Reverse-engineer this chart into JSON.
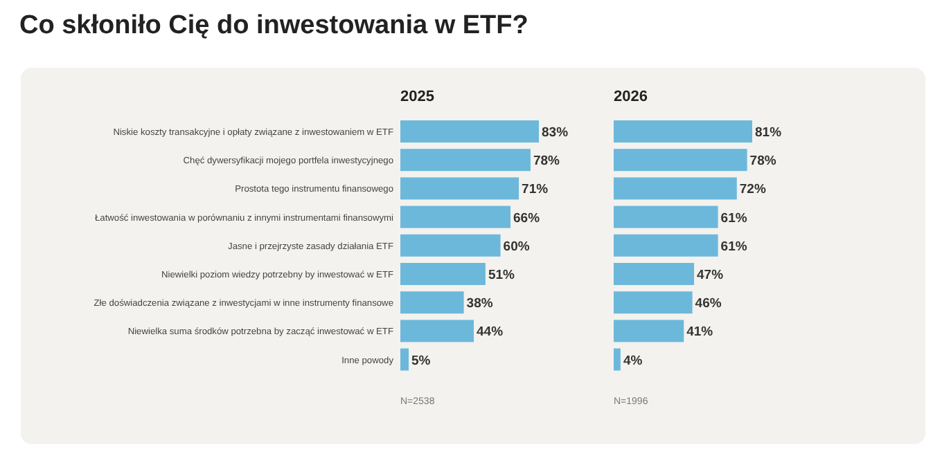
{
  "chart_data": [
    {
      "type": "bar",
      "orientation": "horizontal",
      "title": "Co skłoniło Cię do inwestowania w ETF?",
      "subtitle": "2025",
      "categories": [
        "Niskie koszty transakcyjne i opłaty związane z inwestowaniem w ETF",
        "Chęć dywersyfikacji mojego portfela inwestycyjnego",
        "Prostota tego instrumentu finansowego",
        "Łatwość inwestowania w porównaniu z innymi instrumentami finansowymi",
        "Jasne i przejrzyste zasady działania ETF",
        "Niewielki poziom wiedzy potrzebny by inwestować w ETF",
        "Złe doświadczenia związane z inwestycjami w inne instrumenty finansowe",
        "Niewielka suma środków potrzebna by zacząć inwestować w ETF",
        "Inne powody"
      ],
      "values": [
        83,
        78,
        71,
        66,
        60,
        51,
        38,
        44,
        5
      ],
      "value_labels": [
        "83%",
        "78%",
        "71%",
        "66%",
        "60%",
        "51%",
        "38%",
        "44%",
        "5%"
      ],
      "color": "#6cb8db",
      "tick_labels": "y",
      "annotations": [
        "N=2538"
      ]
    },
    {
      "type": "bar",
      "orientation": "horizontal",
      "subtitle": "2026",
      "categories": [
        null,
        null,
        null,
        null,
        null,
        null,
        null,
        null,
        null
      ],
      "values": [
        81,
        78,
        72,
        61,
        61,
        47,
        46,
        41,
        4
      ],
      "value_labels": [
        "81%",
        "78%",
        "72%",
        "61%",
        "61%",
        "47%",
        "46%",
        "41%",
        "4%"
      ],
      "color": "#6cb8db",
      "tick_labels": false,
      "annotations": [
        "N=1996"
      ]
    }
  ]
}
